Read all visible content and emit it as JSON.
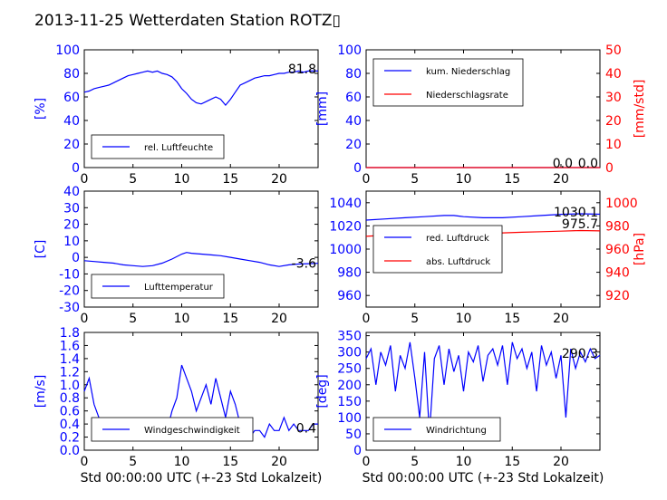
{
  "figure": {
    "title": "2013-11-25 Wetterdaten Station ROTZ▯"
  },
  "colors": {
    "blue": "#0000ff",
    "red": "#ff0000",
    "black": "#000000",
    "panel_bg": "#ffffff"
  },
  "chart_data": [
    {
      "id": "humidity",
      "type": "line",
      "x_range": [
        0,
        24
      ],
      "x_ticks": [
        0,
        5,
        10,
        15,
        20
      ],
      "ylim": [
        0,
        100
      ],
      "y_ticks": [
        0,
        20,
        40,
        60,
        80,
        100
      ],
      "ylabel": "[%]",
      "ylabel_color": "#0000ff",
      "legend_position": "lower-left",
      "last_value_label": "81.8",
      "series": [
        {
          "name": "rel. Luftfeuchte",
          "color": "#0000ff",
          "x": [
            0,
            0.5,
            1,
            1.5,
            2,
            2.5,
            3,
            3.5,
            4,
            4.5,
            5,
            5.5,
            6,
            6.5,
            7,
            7.5,
            8,
            8.5,
            9,
            9.5,
            10,
            10.5,
            11,
            11.5,
            12,
            12.5,
            13,
            13.5,
            14,
            14.5,
            15,
            15.5,
            16,
            16.5,
            17,
            17.5,
            18,
            18.5,
            19,
            19.5,
            20,
            20.5,
            21,
            21.5,
            22,
            22.5,
            23,
            23.5,
            24
          ],
          "y": [
            64,
            65,
            67,
            68,
            69,
            70,
            72,
            74,
            76,
            78,
            79,
            80,
            81,
            82,
            81,
            82,
            80,
            79,
            77,
            73,
            67,
            63,
            58,
            55,
            54,
            56,
            58,
            60,
            58,
            53,
            58,
            64,
            70,
            72,
            74,
            76,
            77,
            78,
            78,
            79,
            80,
            80,
            81,
            81,
            82,
            81,
            82,
            82,
            82
          ]
        }
      ]
    },
    {
      "id": "precipitation",
      "type": "line",
      "x_range": [
        0,
        24
      ],
      "x_ticks": [
        0,
        5,
        10,
        15,
        20
      ],
      "ylim": [
        0,
        100
      ],
      "y_ticks": [
        0,
        20,
        40,
        60,
        80,
        100
      ],
      "ylabel": "[mm]",
      "ylabel_color": "#0000ff",
      "ylim_right": [
        0,
        50
      ],
      "y_ticks_right": [
        0,
        10,
        20,
        30,
        40,
        50
      ],
      "ylabel_right": "[mm/std]",
      "ylabel_right_color": "#ff0000",
      "legend_position": "upper-left",
      "last_value_label": "0.0",
      "last_value_label_2": "0.0",
      "series": [
        {
          "name": "kum. Niederschlag",
          "color": "#0000ff",
          "axis": "left",
          "x": [
            0,
            24
          ],
          "y": [
            0,
            0
          ]
        },
        {
          "name": "Niederschlagsrate",
          "color": "#ff0000",
          "axis": "right",
          "x": [
            0,
            24
          ],
          "y": [
            0,
            0
          ]
        }
      ]
    },
    {
      "id": "temperature",
      "type": "line",
      "x_range": [
        0,
        24
      ],
      "x_ticks": [
        0,
        5,
        10,
        15,
        20
      ],
      "ylim": [
        -30,
        40
      ],
      "y_ticks": [
        -30,
        -20,
        -10,
        0,
        10,
        20,
        30,
        40
      ],
      "ylabel": "[C]",
      "ylabel_color": "#0000ff",
      "legend_position": "lower-left",
      "last_value_label": "-3.6",
      "series": [
        {
          "name": "Lufttemperatur",
          "color": "#0000ff",
          "x": [
            0,
            1,
            2,
            3,
            4,
            5,
            6,
            7,
            8,
            9,
            10,
            10.5,
            11,
            12,
            13,
            14,
            15,
            16,
            17,
            18,
            19,
            20,
            21,
            22,
            23,
            24
          ],
          "y": [
            -2,
            -2.5,
            -3,
            -3.5,
            -4.5,
            -5,
            -5.5,
            -5,
            -3.5,
            -1,
            2,
            3,
            2.5,
            2,
            1.5,
            1,
            0,
            -1,
            -2,
            -3,
            -4.5,
            -5.5,
            -4.5,
            -4,
            -3.8,
            -3.6
          ]
        }
      ]
    },
    {
      "id": "pressure",
      "type": "line",
      "x_range": [
        0,
        24
      ],
      "x_ticks": [
        0,
        5,
        10,
        15,
        20
      ],
      "ylim": [
        950,
        1050
      ],
      "y_ticks": [
        960,
        980,
        1000,
        1020,
        1040
      ],
      "ylabel_color": "#0000ff",
      "ylim_right": [
        910,
        1010
      ],
      "y_ticks_right": [
        920,
        940,
        960,
        980,
        1000
      ],
      "ylabel_right": "[hPa]",
      "ylabel_right_color": "#ff0000",
      "legend_position": "lower-left",
      "last_value_label": "1030.1",
      "last_value_label_2": "975.7",
      "series": [
        {
          "name": "red. Luftdruck",
          "color": "#0000ff",
          "axis": "left",
          "x": [
            0,
            2,
            4,
            6,
            8,
            9,
            10,
            12,
            14,
            16,
            18,
            20,
            22,
            24
          ],
          "y": [
            1025,
            1026,
            1027,
            1028,
            1029,
            1029,
            1028,
            1027,
            1027,
            1028,
            1029,
            1030,
            1030.5,
            1030.1
          ]
        },
        {
          "name": "abs. Luftdruck",
          "color": "#ff0000",
          "axis": "right",
          "x": [
            0,
            2,
            4,
            6,
            8,
            9,
            10,
            12,
            14,
            16,
            18,
            20,
            22,
            24
          ],
          "y": [
            971,
            972,
            973,
            974,
            975,
            975,
            974.5,
            974,
            974,
            974.5,
            975,
            975.5,
            976,
            975.7
          ]
        }
      ]
    },
    {
      "id": "windspeed",
      "type": "line",
      "x_range": [
        0,
        24
      ],
      "x_ticks": [
        0,
        5,
        10,
        15,
        20
      ],
      "ylim": [
        0,
        1.8
      ],
      "y_ticks": [
        0.0,
        0.2,
        0.4,
        0.6,
        0.8,
        1.0,
        1.2,
        1.4,
        1.6,
        1.8
      ],
      "ylabel": "[m/s]",
      "ylabel_color": "#0000ff",
      "legend_position": "lower-left",
      "last_value_label": "0.4",
      "series": [
        {
          "name": "Windgeschwindigkeit",
          "color": "#0000ff",
          "x": [
            0,
            0.5,
            1,
            1.5,
            2,
            2.5,
            3,
            3.5,
            4,
            4.5,
            5,
            5.5,
            6,
            6.5,
            7,
            7.5,
            8,
            8.5,
            9,
            9.5,
            10,
            10.5,
            11,
            11.5,
            12,
            12.5,
            13,
            13.5,
            14,
            14.5,
            15,
            15.5,
            16,
            16.5,
            17,
            17.5,
            18,
            18.5,
            19,
            19.5,
            20,
            20.5,
            21,
            21.5,
            22,
            22.5,
            23,
            23.5,
            24
          ],
          "y": [
            0.9,
            1.1,
            0.7,
            0.5,
            0.3,
            0.4,
            0.2,
            0.3,
            0.2,
            0.4,
            0.2,
            0.3,
            0.2,
            0.3,
            0.2,
            0.3,
            0.4,
            0.3,
            0.6,
            0.8,
            1.3,
            1.1,
            0.9,
            0.6,
            0.8,
            1.0,
            0.7,
            1.1,
            0.8,
            0.5,
            0.9,
            0.7,
            0.4,
            0.3,
            0.2,
            0.3,
            0.3,
            0.2,
            0.4,
            0.3,
            0.3,
            0.5,
            0.3,
            0.4,
            0.3,
            0.3,
            0.3,
            0.4,
            0.4
          ]
        }
      ]
    },
    {
      "id": "winddirection",
      "type": "line",
      "x_range": [
        0,
        24
      ],
      "x_ticks": [
        0,
        5,
        10,
        15,
        20
      ],
      "ylim": [
        0,
        360
      ],
      "y_ticks": [
        0,
        50,
        100,
        150,
        200,
        250,
        300,
        350
      ],
      "ylabel": "[deg]",
      "ylabel_color": "#0000ff",
      "legend_position": "lower-left",
      "last_value_label": "290.3",
      "series": [
        {
          "name": "Windrichtung",
          "color": "#0000ff",
          "x": [
            0,
            0.5,
            1,
            1.5,
            2,
            2.5,
            3,
            3.5,
            4,
            4.5,
            5,
            5.5,
            6,
            6.5,
            7,
            7.5,
            8,
            8.5,
            9,
            9.5,
            10,
            10.5,
            11,
            11.5,
            12,
            12.5,
            13,
            13.5,
            14,
            14.5,
            15,
            15.5,
            16,
            16.5,
            17,
            17.5,
            18,
            18.5,
            19,
            19.5,
            20,
            20.5,
            21,
            21.5,
            22,
            22.5,
            23,
            23.5,
            24
          ],
          "y": [
            280,
            310,
            200,
            300,
            260,
            320,
            180,
            290,
            250,
            330,
            220,
            100,
            300,
            50,
            280,
            320,
            200,
            310,
            240,
            290,
            180,
            300,
            270,
            320,
            210,
            290,
            310,
            260,
            320,
            200,
            330,
            280,
            310,
            250,
            300,
            180,
            320,
            260,
            300,
            220,
            290,
            100,
            310,
            250,
            300,
            270,
            310,
            280,
            290
          ]
        }
      ]
    }
  ],
  "xlabels": {
    "bottom_left": "Std 00:00:00 UTC (+-23 Std Lokalzeit)",
    "bottom_right": "Std 00:00:00 UTC (+-23 Std Lokalzeit)"
  }
}
